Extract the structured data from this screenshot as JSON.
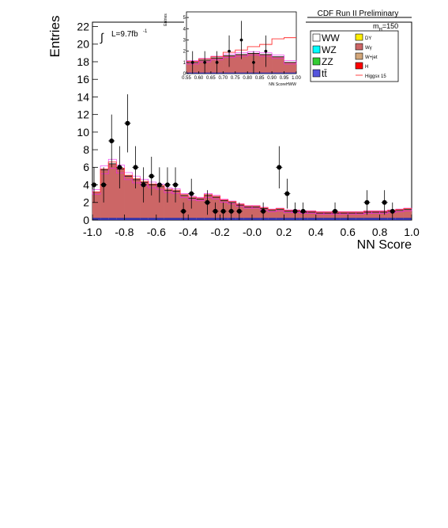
{
  "chart_data": [
    {
      "type": "histogram",
      "title": "CDF Run II Preliminary",
      "xlabel": "NN Score",
      "ylabel": "Entries",
      "xlim": [
        -1.0,
        1.0
      ],
      "ylim": [
        0,
        22.5
      ],
      "x_ticks": [
        "-1.0",
        "-0.8",
        "-0.6",
        "-0.4",
        "-0.2",
        "-0.0",
        "0.2",
        "0.4",
        "0.6",
        "0.8",
        "1.0"
      ],
      "y_ticks": [
        "0",
        "2",
        "4",
        "6",
        "8",
        "10",
        "12",
        "14",
        "16",
        "18",
        "20",
        "22"
      ],
      "luminosity_label": "L=9.7fb",
      "luminosity_exponent": "-1",
      "mass_label": "m",
      "mass_subscript": "H",
      "mass_value": "=150",
      "legend": {
        "placement": "top-right",
        "entries": [
          {
            "label": "WW",
            "color": "#ffffff"
          },
          {
            "label": "WZ",
            "color": "#00ffff"
          },
          {
            "label": "ZZ",
            "color": "#33cc33"
          },
          {
            "label": "tt̄",
            "color": "#5555dd"
          },
          {
            "label": "DY",
            "color": "#ffee00"
          },
          {
            "label": "Wγ",
            "color": "#cc6666"
          },
          {
            "label": "W+jet",
            "color": "#d2a679"
          },
          {
            "label": "H",
            "color": "#ff0000"
          },
          {
            "label": "Higgsx 15",
            "color": "#ff4444"
          }
        ]
      },
      "bin_edges_from": -1.0,
      "bin_width": 0.05,
      "background_total": [
        3.2,
        5.7,
        6.4,
        5.8,
        5.0,
        4.6,
        4.3,
        4.0,
        3.8,
        3.4,
        3.3,
        2.8,
        2.5,
        2.4,
        2.8,
        2.6,
        2.2,
        2.0,
        1.7,
        1.5,
        1.5,
        1.3,
        1.1,
        1.2,
        1.0,
        1.0,
        0.9,
        0.9,
        0.8,
        0.8,
        0.8,
        0.8,
        0.8,
        0.8,
        0.9,
        0.9,
        0.9,
        1.0,
        1.1,
        1.2,
        1.2,
        1.3,
        1.4,
        1.6,
        1.7,
        1.8,
        1.7,
        1.5,
        1.0,
        0.8
      ],
      "higgs_x15_total": [
        3.2,
        5.8,
        6.6,
        5.9,
        5.1,
        4.7,
        4.4,
        4.1,
        3.9,
        3.5,
        3.4,
        2.9,
        2.6,
        2.5,
        2.9,
        2.7,
        2.3,
        2.1,
        1.8,
        1.6,
        1.6,
        1.4,
        1.2,
        1.3,
        1.1,
        1.1,
        1.0,
        1.0,
        0.9,
        0.9,
        0.9,
        0.9,
        0.9,
        0.9,
        1.0,
        1.0,
        1.0,
        1.1,
        1.2,
        1.3,
        1.4,
        1.5,
        1.6,
        1.9,
        2.1,
        2.4,
        2.6,
        3.1,
        3.2,
        1.2
      ],
      "data_points": {
        "x": [
          -0.99,
          -0.93,
          -0.88,
          -0.83,
          -0.78,
          -0.73,
          -0.68,
          -0.63,
          -0.58,
          -0.53,
          -0.48,
          -0.43,
          -0.38,
          -0.28,
          -0.23,
          -0.18,
          -0.13,
          -0.08,
          0.07,
          0.17,
          0.22,
          0.27,
          0.32,
          0.52,
          0.72,
          0.83,
          0.88
        ],
        "y": [
          4,
          4,
          9,
          6,
          11,
          6,
          4,
          5,
          4,
          4,
          4,
          1,
          3,
          2,
          1,
          1,
          1,
          1,
          1,
          6,
          3,
          1,
          1,
          1,
          2,
          2,
          1
        ],
        "err": [
          2,
          2,
          3,
          2.4,
          3.3,
          2.4,
          2,
          2.2,
          2,
          2,
          2,
          1,
          1.7,
          1.4,
          1,
          1,
          1,
          1,
          1,
          2.4,
          1.7,
          1,
          1,
          1,
          1.4,
          1.4,
          1
        ]
      }
    },
    {
      "type": "histogram",
      "title": "",
      "xlabel": "NN ScoreHWW",
      "ylabel": "Entries",
      "xlim": [
        0.55,
        1.0
      ],
      "ylim": [
        0,
        5.5
      ],
      "x_ticks": [
        "0.55",
        "0.60",
        "0.65",
        "0.70",
        "0.75",
        "0.80",
        "0.85",
        "0.90",
        "0.95",
        "1.00"
      ],
      "y_ticks": [
        "0",
        "1",
        "2",
        "3",
        "4",
        "5"
      ],
      "bin_edges_from": 0.55,
      "bin_width": 0.05,
      "background_total": [
        1.0,
        1.2,
        1.4,
        1.6,
        1.7,
        1.8,
        1.7,
        1.5,
        1.0
      ],
      "higgs_x15_total": [
        1.1,
        1.3,
        1.5,
        1.9,
        2.1,
        2.4,
        2.6,
        3.1,
        3.2
      ],
      "data_points": {
        "x": [
          0.575,
          0.625,
          0.675,
          0.725,
          0.775,
          0.825,
          0.875
        ],
        "y": [
          1,
          1,
          1,
          2,
          3,
          1,
          2
        ],
        "err": [
          1,
          1,
          1,
          1.4,
          1.7,
          1,
          1.4
        ]
      }
    }
  ]
}
